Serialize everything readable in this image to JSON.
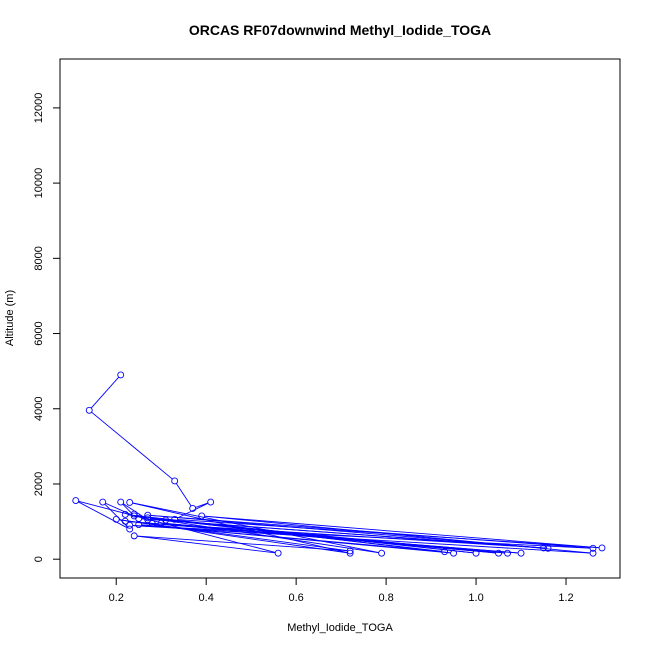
{
  "chart_data": {
    "type": "line",
    "title": "ORCAS RF07downwind Methyl_Iodide_TOGA",
    "xlabel": "Methyl_Iodide_TOGA",
    "ylabel": "Altitude (m)",
    "xlim": [
      0.075,
      1.32
    ],
    "ylim": [
      -500,
      13300
    ],
    "x_ticks": [
      0.2,
      0.4,
      0.6,
      0.8,
      1.0,
      1.2
    ],
    "x_tick_labels": [
      "0.2",
      "0.4",
      "0.6",
      "0.8",
      "1.0",
      "1.2"
    ],
    "y_ticks": [
      0,
      2000,
      4000,
      6000,
      8000,
      10000,
      12000
    ],
    "y_tick_labels": [
      "0",
      "2000",
      "4000",
      "6000",
      "8000",
      "10000",
      "12000"
    ],
    "grid": false,
    "marker": "open-circle",
    "series": [
      {
        "color": "#0000ff",
        "x": [
          0.21,
          0.14,
          0.33,
          0.37,
          0.41,
          0.33,
          1.28,
          0.39,
          1.26,
          0.23,
          1.26,
          0.27,
          1.16,
          0.25,
          1.15,
          0.28,
          1.1,
          0.22,
          1.07,
          0.3,
          1.05,
          0.31,
          1.0,
          0.22,
          0.95,
          0.25,
          0.93,
          0.27,
          0.79,
          0.23,
          0.72,
          0.2,
          0.72,
          0.24,
          0.56,
          0.11,
          0.23,
          0.17,
          0.24,
          0.21,
          0.27,
          0.24
        ],
        "y": [
          4900,
          3960,
          2080,
          1350,
          1520,
          1060,
          300,
          1150,
          160,
          900,
          290,
          1170,
          290,
          1080,
          300,
          950,
          160,
          1010,
          160,
          960,
          160,
          1040,
          160,
          1190,
          160,
          920,
          200,
          1100,
          160,
          1510,
          160,
          1060,
          220,
          620,
          160,
          1560,
          800,
          1520,
          1150,
          1520,
          1050,
          1200
        ]
      }
    ]
  }
}
